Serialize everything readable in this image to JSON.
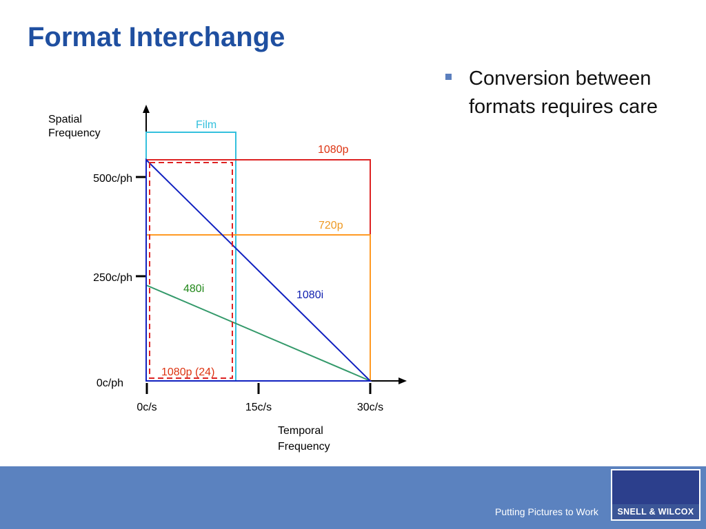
{
  "title": "Format Interchange",
  "bullets": [
    "Conversion between formats requires care"
  ],
  "colors": {
    "title": "#1f4fa0",
    "bullet_marker": "#5b7fbe",
    "footer": "#5b82bf",
    "logo_panel": "#2c3f8c",
    "logo_text_bg": "#3b5597",
    "film": "#33c0dd",
    "p1080": "#dd2222",
    "p720": "#ff9922",
    "i480": "#33996a",
    "i1080": "#1020c0",
    "p1080_24": "#dd2222",
    "label_1080p": "#dd3311",
    "label_720p": "#ee9922",
    "label_480i": "#22881a",
    "label_1080i": "#1020b0",
    "label_1080p24": "#dd3311"
  },
  "chart_data": {
    "type": "diagram",
    "ylabel": [
      "Spatial",
      "Frequency"
    ],
    "xlabel": [
      "Temporal",
      "Frequency"
    ],
    "y_ticks": [
      {
        "value": 0,
        "label": "0c/ph"
      },
      {
        "value": 250,
        "label": "250c/ph"
      },
      {
        "value": 500,
        "label": "500c/ph"
      }
    ],
    "x_ticks": [
      {
        "value": 0,
        "label": "0c/s"
      },
      {
        "value": 15,
        "label": "15c/s"
      },
      {
        "value": 30,
        "label": "30c/s"
      }
    ],
    "formats": [
      {
        "name": "Film",
        "shape": "rectangle",
        "temporal_max": 12,
        "spatial_max": 627,
        "color": "#33c0dd",
        "style": "solid"
      },
      {
        "name": "1080p",
        "shape": "rectangle",
        "temporal_max": 30,
        "spatial_max": 555,
        "color": "#dd2222",
        "style": "solid"
      },
      {
        "name": "720p",
        "shape": "rectangle",
        "temporal_max": 30,
        "spatial_max": 365,
        "color": "#ff9922",
        "style": "solid"
      },
      {
        "name": "480i",
        "shape": "triangle",
        "temporal_max": 30,
        "spatial_max": 240,
        "color": "#33996a",
        "style": "solid"
      },
      {
        "name": "1080i",
        "shape": "triangle",
        "temporal_max": 30,
        "spatial_max": 555,
        "color": "#1020c0",
        "style": "solid"
      },
      {
        "name": "1080p (24)",
        "shape": "rectangle",
        "temporal_max": 11.6,
        "spatial_max": 550,
        "color": "#dd2222",
        "style": "dashed"
      }
    ]
  },
  "footer": {
    "tagline": "Putting Pictures to Work",
    "logo_text": "SNELL & WILCOX"
  }
}
